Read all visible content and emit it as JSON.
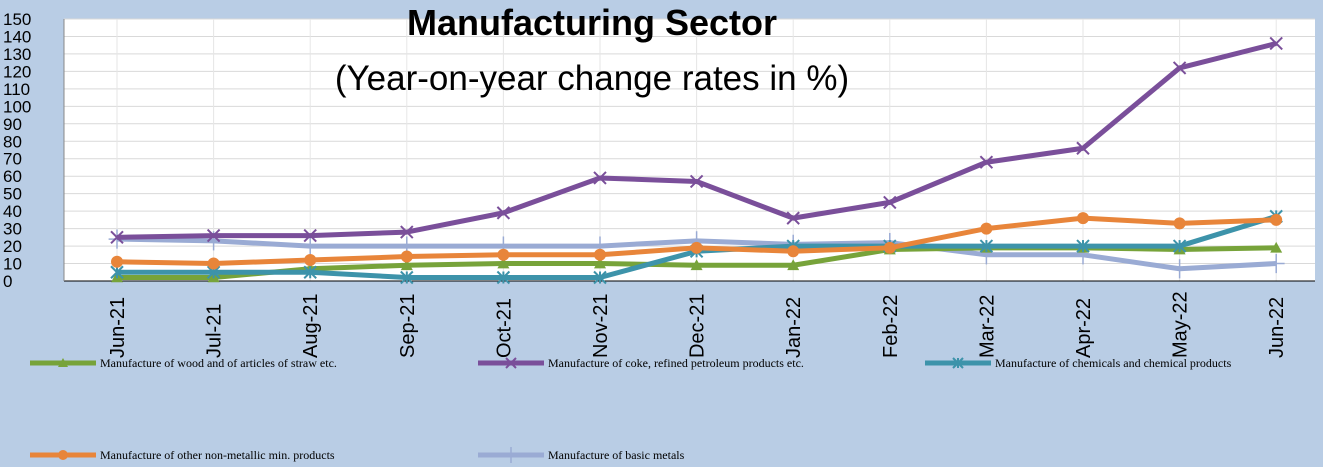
{
  "chart_data": {
    "type": "line",
    "title": "Manufacturing Sector",
    "subtitle": "(Year-on-year change rates in %)",
    "categories": [
      "Jun-21",
      "Jul-21",
      "Aug-21",
      "Sep-21",
      "Oct-21",
      "Nov-21",
      "Dec-21",
      "Jan-22",
      "Feb-22",
      "Mar-22",
      "Apr-22",
      "May-22",
      "Jun-22"
    ],
    "ylim": [
      0,
      150
    ],
    "yticks": [
      0,
      10,
      20,
      30,
      40,
      50,
      60,
      70,
      80,
      90,
      100,
      110,
      120,
      130,
      140,
      150
    ],
    "grid": true,
    "legend_position": "bottom",
    "series": [
      {
        "name": "Manufacture of wood and of articles of straw etc.",
        "color": "#77a33a",
        "marker": "triangle",
        "values": [
          2,
          2,
          7,
          9,
          10,
          10,
          9,
          9,
          18,
          19,
          19,
          18,
          19
        ]
      },
      {
        "name": "Manufacture of coke, refined petroleum products etc.",
        "color": "#7a4f9a",
        "marker": "x",
        "values": [
          25,
          26,
          26,
          28,
          39,
          59,
          57,
          36,
          45,
          68,
          76,
          122,
          136
        ]
      },
      {
        "name": "Manufacture of chemicals and chemical products",
        "color": "#3d93aa",
        "marker": "star",
        "values": [
          5,
          5,
          5,
          2,
          2,
          2,
          17,
          20,
          20,
          20,
          20,
          20,
          37
        ]
      },
      {
        "name": "Manufacture of other non-metallic min. products",
        "color": "#e8853a",
        "marker": "circle",
        "values": [
          11,
          10,
          12,
          14,
          15,
          15,
          19,
          17,
          19,
          30,
          36,
          33,
          35
        ]
      },
      {
        "name": "Manufacture of basic metals",
        "color": "#9aabd4",
        "marker": "plus",
        "values": [
          24,
          23,
          20,
          20,
          20,
          20,
          23,
          21,
          22,
          15,
          15,
          7,
          10
        ]
      }
    ]
  }
}
